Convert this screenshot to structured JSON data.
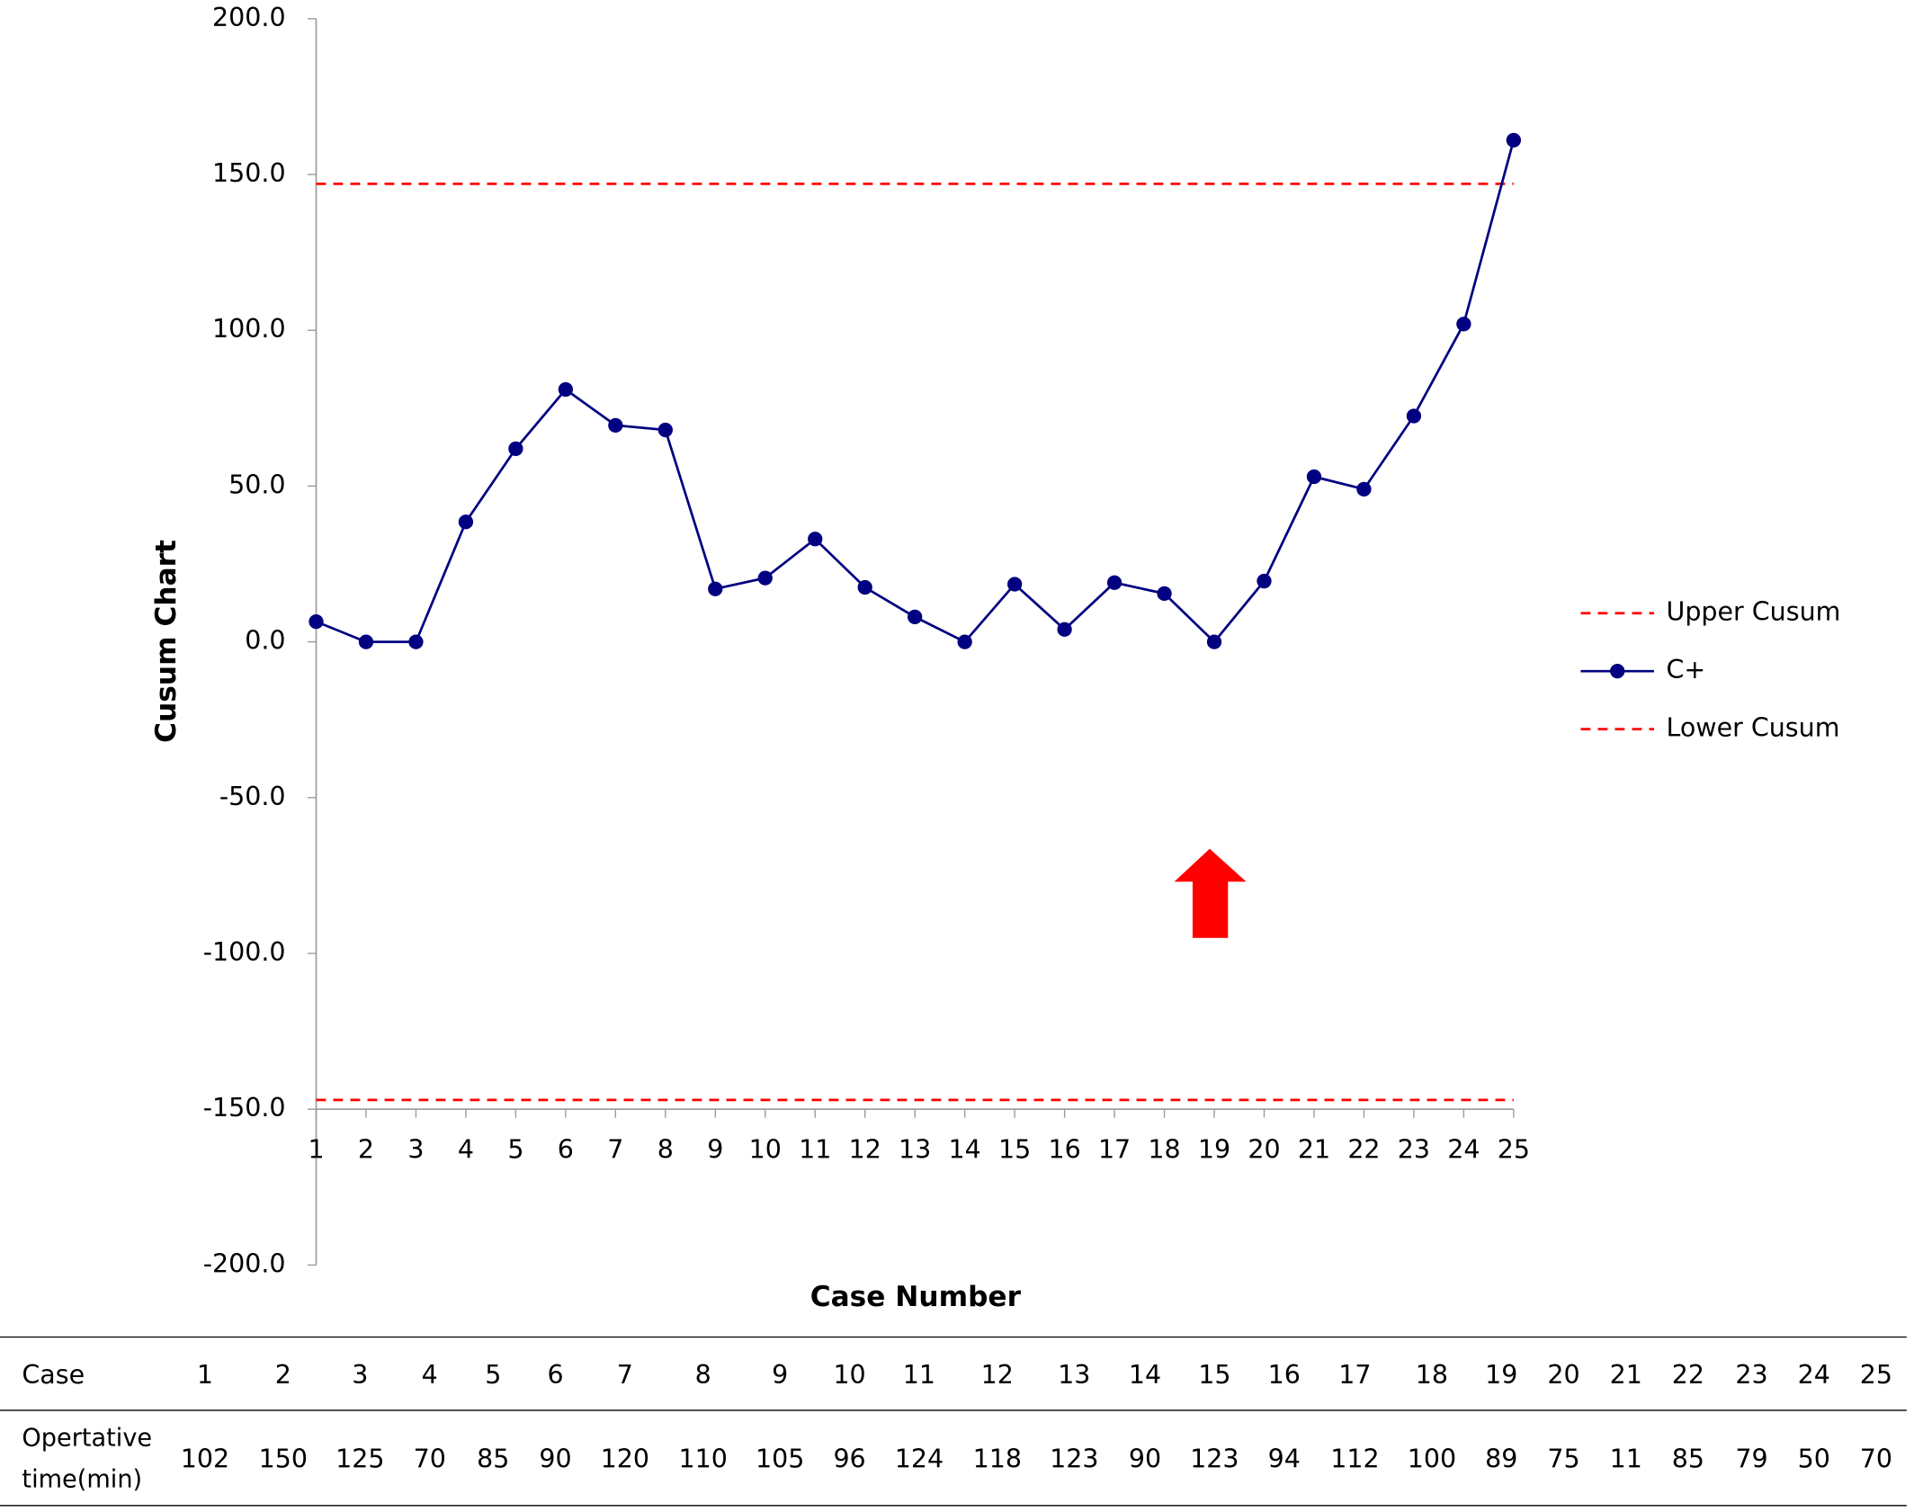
{
  "chart_data": {
    "type": "line",
    "x_label": "Case Number",
    "y_label": "Cusum Chart",
    "categories": [
      "1",
      "2",
      "3",
      "4",
      "5",
      "6",
      "7",
      "8",
      "9",
      "10",
      "11",
      "12",
      "13",
      "14",
      "15",
      "16",
      "17",
      "18",
      "19",
      "20",
      "21",
      "22",
      "23",
      "24",
      "25"
    ],
    "series": [
      {
        "name": "Upper Cusum",
        "color": "#ff0000",
        "dashed": true,
        "markers": false,
        "values": [
          147,
          147,
          147,
          147,
          147,
          147,
          147,
          147,
          147,
          147,
          147,
          147,
          147,
          147,
          147,
          147,
          147,
          147,
          147,
          147,
          147,
          147,
          147,
          147,
          147
        ]
      },
      {
        "name": "C+",
        "color": "#000080",
        "dashed": false,
        "markers": true,
        "values": [
          6.5,
          0,
          0,
          38.5,
          62,
          81,
          69.5,
          68,
          17,
          20.5,
          33,
          17.5,
          8,
          0,
          18.5,
          4,
          19,
          15.5,
          0,
          19.5,
          53,
          49,
          72.5,
          102,
          161
        ]
      },
      {
        "name": "Lower Cusum",
        "color": "#ff0000",
        "dashed": true,
        "markers": false,
        "values": [
          -147,
          -147,
          -147,
          -147,
          -147,
          -147,
          -147,
          -147,
          -147,
          -147,
          -147,
          -147,
          -147,
          -147,
          -147,
          -147,
          -147,
          -147,
          -147,
          -147,
          -147,
          -147,
          -147,
          -147,
          -147
        ]
      }
    ],
    "ylim": [
      -200,
      200
    ],
    "yticks": [
      {
        "value": -200,
        "label": "-200.0"
      },
      {
        "value": -150,
        "label": "-150.0"
      },
      {
        "value": -100,
        "label": "-100.0"
      },
      {
        "value": -50,
        "label": "-50.0"
      },
      {
        "value": 0,
        "label": "0.0"
      },
      {
        "value": 50,
        "label": "50.0"
      },
      {
        "value": 100,
        "label": "100.0"
      },
      {
        "value": 150,
        "label": "150.0"
      },
      {
        "value": 200,
        "label": "200.0"
      }
    ],
    "x_axis_crossing": -150,
    "grid": false,
    "legend": "right"
  },
  "table": {
    "rows": [
      [
        "Case",
        1,
        2,
        3,
        4,
        5,
        6,
        7,
        8,
        9,
        10,
        11,
        12,
        13,
        14,
        15,
        16,
        17,
        18,
        19,
        20,
        21,
        22,
        23,
        24,
        25
      ],
      [
        "Opertative time(min)",
        102,
        150,
        125,
        70,
        85,
        90,
        120,
        110,
        105,
        96,
        124,
        118,
        123,
        90,
        123,
        94,
        112,
        100,
        89,
        75,
        11,
        85,
        79,
        50,
        70
      ]
    ]
  }
}
